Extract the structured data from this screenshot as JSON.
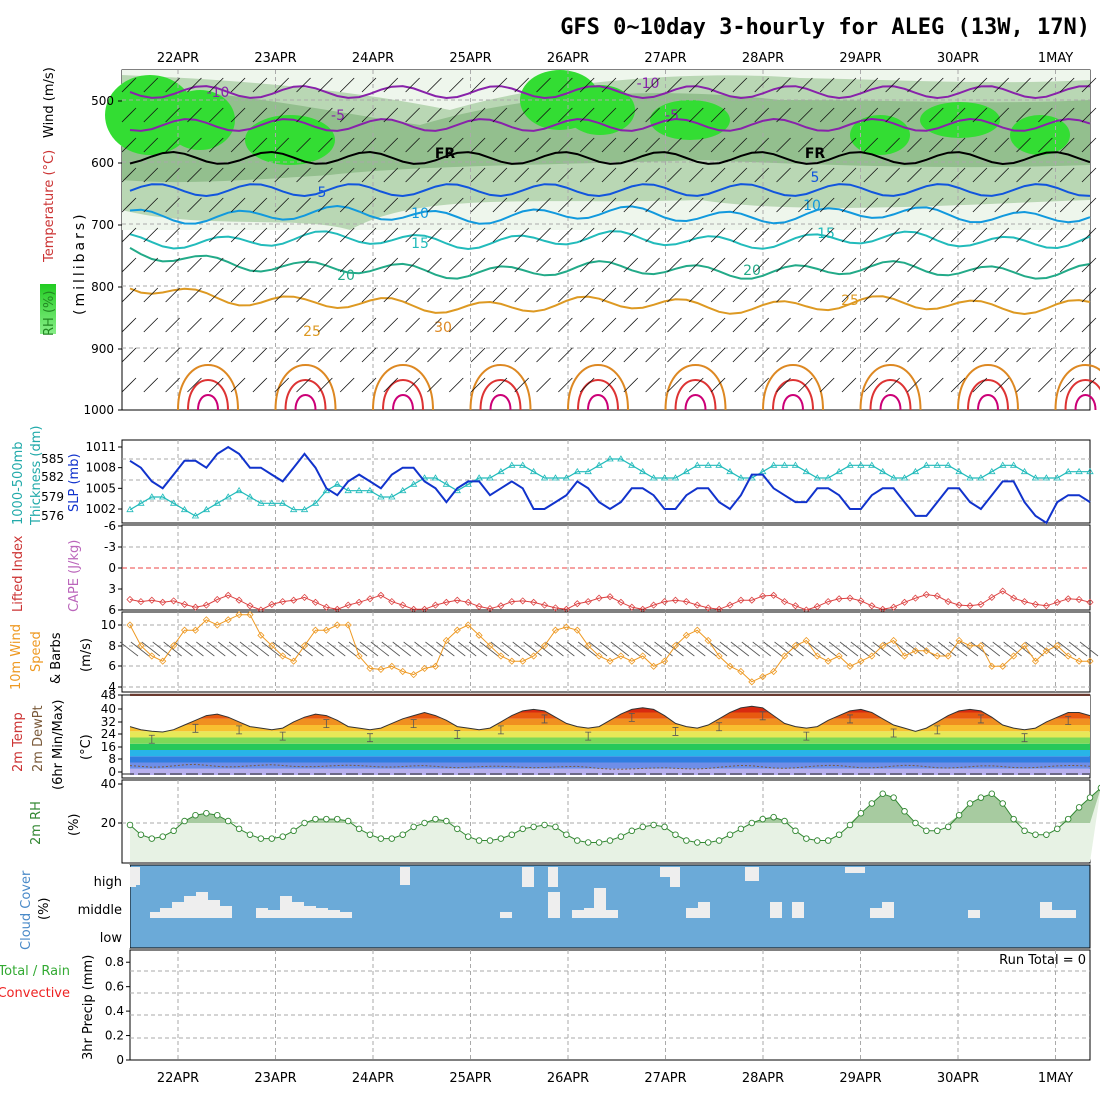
{
  "title": "GFS 0~10day 3-hourly for ALEG (13W, 17N)",
  "dates": [
    "22APR",
    "23APR",
    "24APR",
    "25APR",
    "26APR",
    "27APR",
    "28APR",
    "29APR",
    "30APR",
    "1MAY"
  ],
  "colors": {
    "grid": "#aaaaaa",
    "rh_green": "#33dd33",
    "slp": "#1133cc",
    "thickness": "#22bbbb",
    "lifted_index": "#dd4444",
    "wind_speed": "#ee9922",
    "rh2m": "#338833",
    "cloud": "#6baad8",
    "precip_conv": "#ee2222"
  },
  "panels": {
    "upper": {
      "ylabel_parts": [
        "RH (%)",
        "Temperature (°C)",
        "Wind (m/s)"
      ],
      "ylabel_mb": "(millibars)",
      "yticks": [
        "500",
        "600",
        "700",
        "800",
        "900",
        "1000"
      ],
      "contour_labels": [
        "-10",
        "-5",
        "FR",
        "5",
        "10",
        "15",
        "20",
        "25",
        "30",
        "-10",
        "-5",
        "FR",
        "5",
        "10",
        "15",
        "20",
        "25"
      ]
    },
    "slp": {
      "ylabel_parts": [
        "1000-500mb",
        "Thickness (dm)",
        "SLP (mb)"
      ],
      "left_ticks": [
        "585",
        "582",
        "579",
        "576"
      ],
      "right_ticks": [
        "1011",
        "1008",
        "1005",
        "1002"
      ]
    },
    "li": {
      "ylabel_parts": [
        "Lifted Index",
        "CAPE (J/kg)"
      ],
      "yticks": [
        "-6",
        "-3",
        "0",
        "3",
        "6"
      ]
    },
    "wind": {
      "ylabel_parts": [
        "10m Wind",
        "Speed",
        "& Barbs"
      ],
      "unit": "(m/s)",
      "yticks": [
        "10",
        "8",
        "6",
        "4"
      ]
    },
    "temp": {
      "ylabel_parts": [
        "2m Temp",
        "2m DewPt",
        "(6hr Min/Max)"
      ],
      "unit": "(°C)",
      "yticks": [
        "48",
        "40",
        "32",
        "24",
        "16",
        "8",
        "0"
      ]
    },
    "rh2m": {
      "ylabel": "2m RH",
      "unit": "(%)",
      "yticks": [
        "40",
        "20"
      ]
    },
    "cloud": {
      "ylabel": "Cloud Cover",
      "unit": "(%)",
      "levels": [
        "high",
        "middle",
        "low"
      ]
    },
    "precip": {
      "ylabel_parts": [
        "Total / Rain",
        "Convective",
        "3hr Precip (mm)"
      ],
      "yticks": [
        "0.8",
        "0.6",
        "0.4",
        "0.2",
        "0"
      ],
      "run_total": "Run Total = 0"
    }
  },
  "chart_data": {
    "type": "line",
    "time_step_hours": 3,
    "x_start": "21APR 12Z",
    "x_end": "1MAY 06Z",
    "series": [
      {
        "values": [
          1009,
          1008,
          1006,
          1005,
          1007,
          1009,
          1009,
          1008,
          1010,
          1011,
          1010,
          1008,
          1008,
          1007,
          1006,
          1008,
          1010,
          1008,
          1005,
          1004,
          1006,
          1007,
          1006,
          1005,
          1007,
          1008,
          1008,
          1006,
          1005,
          1003,
          1005,
          1006,
          1006,
          1004,
          1005,
          1006,
          1005,
          1002,
          1002,
          1003,
          1004,
          1006,
          1005,
          1003,
          1002,
          1003,
          1005,
          1005,
          1004,
          1002,
          1002,
          1004,
          1005,
          1005,
          1003,
          1002,
          1004,
          1007,
          1007,
          1005,
          1004,
          1003,
          1003,
          1005,
          1005,
          1004,
          1002,
          1002,
          1004,
          1005,
          1005,
          1003,
          1001,
          1001,
          1003,
          1005,
          1005,
          1003,
          1002,
          1004,
          1006,
          1006,
          1003,
          1001,
          1000,
          1003,
          1004,
          1004,
          1003
        ]
      },
      {
        "values": [
          577,
          578,
          579,
          579,
          578,
          577,
          576,
          577,
          578,
          579,
          580,
          579,
          578,
          578,
          578,
          577,
          577,
          578,
          580,
          581,
          580,
          580,
          580,
          579,
          579,
          580,
          581,
          582,
          582,
          581,
          580,
          581,
          582,
          582,
          583,
          584,
          584,
          583,
          582,
          582,
          582,
          583,
          583,
          584,
          585,
          585,
          584,
          583,
          582,
          582,
          582,
          583,
          584,
          584,
          584,
          583,
          582,
          582,
          583,
          584,
          584,
          584,
          583,
          582,
          582,
          583,
          584,
          584,
          584,
          583,
          582,
          582,
          583,
          584,
          584,
          584,
          583,
          582,
          582,
          583,
          584,
          584,
          583,
          582,
          582,
          582,
          583,
          583,
          583
        ]
      },
      {
        "values": [
          4.5,
          4.8,
          4.6,
          4.9,
          4.7,
          5.2,
          5.6,
          5.3,
          4.5,
          3.9,
          4.6,
          5.4,
          6.0,
          5.2,
          4.8,
          4.6,
          4.2,
          4.9,
          5.6,
          5.9,
          5.3,
          4.9,
          4.4,
          3.9,
          4.8,
          5.3,
          5.9,
          5.9,
          5.3,
          4.9,
          4.6,
          4.9,
          5.5,
          5.8,
          5.4,
          4.8,
          4.7,
          4.9,
          5.3,
          5.7,
          5.9,
          5.1,
          4.8,
          4.3,
          4.1,
          4.9,
          5.6,
          5.9,
          5.3,
          4.8,
          4.6,
          4.8,
          5.3,
          5.7,
          5.9,
          5.3,
          4.6,
          4.6,
          4.0,
          3.9,
          4.8,
          5.4,
          6.0,
          5.5,
          4.8,
          4.4,
          4.3,
          4.7,
          5.4,
          5.9,
          5.6,
          4.9,
          4.3,
          3.8,
          4.0,
          4.8,
          5.3,
          5.4,
          5.2,
          4.2,
          3.3,
          4.3,
          4.8,
          5.2,
          5.4,
          4.9,
          4.4,
          4.5,
          4.9
        ]
      },
      {
        "values": [
          10,
          8,
          7,
          6.5,
          8,
          9.5,
          9.5,
          10.5,
          10,
          10.5,
          11,
          11,
          9,
          8,
          7,
          6.5,
          8,
          9.5,
          9.5,
          10,
          10,
          7,
          5.8,
          5.7,
          6,
          5.5,
          5.2,
          5.8,
          6,
          8.5,
          9.5,
          10,
          9,
          8,
          7,
          6.5,
          6.5,
          7,
          8,
          9.5,
          9.8,
          9.5,
          8,
          7,
          6.5,
          7,
          6.5,
          7,
          6,
          6.5,
          8,
          9,
          9.5,
          8.5,
          7,
          6,
          5.5,
          4.5,
          5,
          5.5,
          7,
          8,
          8.5,
          7,
          6.5,
          7,
          6,
          6.5,
          7,
          8,
          8.5,
          7,
          7.5,
          7.5,
          7,
          7,
          8.5,
          8,
          8,
          6,
          6,
          7,
          8,
          6.5,
          7.5,
          8,
          7,
          6.5,
          6.5
        ]
      },
      {
        "values": [
          31,
          29,
          28,
          27.5,
          29,
          32,
          35,
          38,
          39,
          37,
          34,
          31,
          30,
          29,
          30,
          34,
          37,
          39,
          38,
          35,
          31,
          30,
          29,
          30,
          33,
          36,
          38,
          40,
          38,
          35,
          31,
          30,
          29,
          30,
          34,
          38,
          41,
          42,
          41,
          37,
          33,
          31,
          30,
          31,
          35,
          39,
          42,
          43,
          42,
          38,
          33,
          31,
          30,
          32,
          36,
          40,
          43,
          44,
          43,
          38,
          33,
          31,
          30,
          31,
          35,
          38,
          41,
          42,
          40,
          36,
          32,
          30,
          28,
          30,
          34,
          38,
          41,
          42,
          41,
          37,
          32,
          30,
          29,
          30,
          34,
          37,
          40,
          40,
          38
        ]
      },
      {
        "values": [
          6,
          5.5,
          5,
          5.2,
          5.8,
          6.5,
          6.8,
          6.2,
          5.5,
          5.2,
          5.4,
          5.8,
          6.3,
          6.6,
          6.1,
          5.5,
          5.3,
          5.4,
          5.7,
          6.1,
          6.3,
          6.0,
          5.6,
          5.2,
          5.1,
          5.4,
          5.8,
          6.0,
          5.5,
          5.0,
          4.7,
          4.9,
          5.3,
          5.6,
          5.6,
          5.3,
          4.9,
          4.7,
          4.8,
          5.1,
          5.4,
          5.5,
          4.9,
          4.2,
          3.8,
          3.7,
          3.9,
          4.2,
          4.5,
          4.6,
          4.3,
          4.0,
          3.9,
          4.2,
          4.9,
          5.6,
          6.1,
          5.9,
          5.2,
          4.5,
          4.3,
          4.6,
          5.2,
          5.8,
          6.2,
          6.0,
          5.3,
          4.7,
          4.6,
          5.0,
          5.7,
          6.2,
          6.0,
          5.3,
          4.7,
          4.5,
          4.8,
          5.3,
          5.8,
          5.9,
          5.4,
          4.8,
          4.6,
          4.8,
          5.3,
          5.8,
          6.1,
          6.0,
          5.6
        ]
      },
      {
        "values": [
          19,
          14,
          12,
          13,
          16,
          21,
          24,
          25,
          24,
          21,
          17,
          14,
          12,
          12,
          13,
          16,
          20,
          22,
          22,
          22,
          21,
          17,
          14,
          12,
          12,
          14,
          18,
          20,
          22,
          21,
          17,
          13,
          11,
          11,
          12,
          14,
          17,
          18,
          19,
          18,
          14,
          11,
          10,
          10,
          11,
          13,
          16,
          18,
          19,
          18,
          14,
          11,
          10,
          10,
          11,
          14,
          17,
          20,
          22,
          23,
          21,
          16,
          12,
          11,
          11,
          14,
          19,
          25,
          30,
          35,
          33,
          26,
          20,
          16,
          16,
          18,
          24,
          30,
          33,
          35,
          30,
          22,
          16,
          14,
          14,
          17,
          22,
          28,
          33,
          38
        ]
      }
    ]
  }
}
